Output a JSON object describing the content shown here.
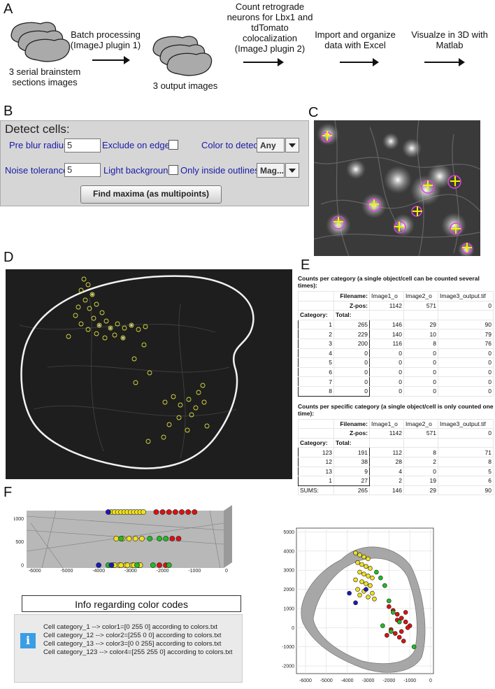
{
  "panel_labels": {
    "a": "A",
    "b": "B",
    "c": "C",
    "d": "D",
    "e": "E",
    "f": "F"
  },
  "flow": {
    "input_caption": "3 serial brainstem sections images",
    "step1": "Batch processing (ImageJ plugin 1)",
    "output_caption": "3 output images",
    "step2": "Count retrograde neurons for Lbx1 and tdTomato colocalization (ImageJ plugin 2)",
    "step3": "Import and organize data with Excel",
    "step4": "Visualze in 3D with Matlab"
  },
  "detect": {
    "title": "Detect cells:",
    "pre_blur_label": "Pre blur radius",
    "pre_blur_value": "5",
    "exclude_label": "Exclude on edges",
    "color_label": "Color to detect",
    "color_value": "Any",
    "noise_label": "Noise tolerance",
    "noise_value": "5",
    "light_label": "Light background",
    "outlines_label": "Only inside outlines",
    "outlines_value": "Mag...",
    "button": "Find maxima (as multipoints)"
  },
  "table": {
    "title1": "Counts per category (a single object/cell can be counted several times):",
    "title2": "Counts per specific category  (a single object/cell is only counted one time):",
    "filename_label": "Filename:",
    "files": [
      "Image1_o",
      "Image2_o",
      "Image3_output.tif"
    ],
    "zpos_label": "Z-pos:",
    "zpos": [
      "1142",
      "571",
      "0"
    ],
    "category_label": "Category:",
    "total_label": "Total:",
    "rows1": [
      [
        "1",
        "265",
        "146",
        "29",
        "90"
      ],
      [
        "2",
        "229",
        "140",
        "10",
        "79"
      ],
      [
        "3",
        "200",
        "116",
        "8",
        "76"
      ],
      [
        "4",
        "0",
        "0",
        "0",
        "0"
      ],
      [
        "5",
        "0",
        "0",
        "0",
        "0"
      ],
      [
        "6",
        "0",
        "0",
        "0",
        "0"
      ],
      [
        "7",
        "0",
        "0",
        "0",
        "0"
      ],
      [
        "8",
        "0",
        "0",
        "0",
        "0"
      ]
    ],
    "rows2": [
      [
        "123",
        "191",
        "112",
        "8",
        "71"
      ],
      [
        "12",
        "38",
        "28",
        "2",
        "8"
      ],
      [
        "13",
        "9",
        "4",
        "0",
        "5"
      ],
      [
        "1",
        "27",
        "2",
        "19",
        "6"
      ]
    ],
    "sums_label": "SUMS:",
    "sums": [
      "265",
      "146",
      "29",
      "90"
    ]
  },
  "info": {
    "title": "Info regarding color codes",
    "icon": "info-icon",
    "lines": [
      "Cell category_1 --> color1=[0 255 0] according to colors.txt",
      "Cell category_12 --> color2=[255 0 0] according to colors.txt",
      "Cell category_13 --> color3=[0 0 255] according to colors.txt",
      "Cell category_123 --> color4=[255 255 0] according to colors.txt"
    ]
  },
  "colors": {
    "green": "#22bb22",
    "red": "#dd1111",
    "blue": "#1a1ab8",
    "yellow": "#f0e020"
  },
  "chart_data": [
    {
      "type": "scatter",
      "x_ticks": [
        "-6000",
        "-5000",
        "-4000",
        "-3000",
        "-2000",
        "-1000",
        "0"
      ],
      "y_ticks": [
        "0",
        "500",
        "1000"
      ],
      "xlim": [
        -6300,
        0
      ],
      "ylim": [
        0,
        1142
      ],
      "series": [
        {
          "color": "yellow",
          "x": [
            -3600,
            -3500,
            -3400,
            -3300,
            -3200,
            -3100,
            -3000,
            -2900,
            -2800,
            -2700,
            -2600,
            -3450,
            -3250,
            -3050,
            -2850,
            -2650,
            -3550,
            -3350,
            -3150,
            -2950,
            -2750,
            -3500,
            -3300,
            -3100,
            -2900,
            -2700
          ],
          "y": [
            1142,
            1142,
            1142,
            1142,
            1142,
            1142,
            1142,
            1142,
            1142,
            1142,
            1142,
            571,
            571,
            571,
            571,
            571,
            0,
            0,
            0,
            0,
            0,
            0,
            0,
            0,
            0,
            0
          ]
        },
        {
          "color": "red",
          "x": [
            -2000,
            -1800,
            -1600,
            -1400,
            -1200,
            -1000,
            -2200,
            -1700,
            -1500,
            -2100,
            -1900
          ],
          "y": [
            1142,
            1142,
            1142,
            1142,
            1142,
            1142,
            1142,
            571,
            571,
            0,
            0
          ]
        },
        {
          "color": "green",
          "x": [
            -3300,
            -2400,
            -2100,
            -1900,
            -2300,
            -1800,
            -3700,
            -2800
          ],
          "y": [
            571,
            571,
            571,
            571,
            0,
            0,
            0,
            0
          ]
        },
        {
          "color": "blue",
          "x": [
            -3700,
            -4000,
            -3600
          ],
          "y": [
            1142,
            0,
            0
          ]
        }
      ]
    },
    {
      "type": "scatter",
      "x_ticks": [
        "-6000",
        "-5000",
        "-4000",
        "-3000",
        "-2000",
        "-1000",
        "0"
      ],
      "y_ticks": [
        "5000",
        "4000",
        "3000",
        "2000",
        "1000",
        "0",
        "-1000",
        "-2000"
      ],
      "xlim": [
        -6300,
        0
      ],
      "ylim": [
        -2400,
        5200
      ],
      "series": [
        {
          "color": "yellow",
          "x": [
            -3600,
            -3400,
            -3200,
            -3000,
            -3500,
            -3300,
            -3100,
            -2900,
            -3400,
            -3200,
            -3000,
            -2800,
            -3600,
            -3300,
            -3100,
            -2900,
            -3500,
            -3200,
            -2800,
            -3400,
            -3000,
            -2700
          ],
          "y": [
            3900,
            3800,
            3700,
            3600,
            3400,
            3300,
            3200,
            3100,
            2900,
            2800,
            2700,
            2600,
            2500,
            2400,
            2300,
            2200,
            2000,
            1900,
            1800,
            1700,
            1600,
            1500
          ]
        },
        {
          "color": "red",
          "x": [
            -2000,
            -1800,
            -1600,
            -1400,
            -1200,
            -1000,
            -1900,
            -1700,
            -1500,
            -1300,
            -1100,
            -1600,
            -1400,
            -1200,
            -2100
          ],
          "y": [
            1100,
            900,
            700,
            500,
            300,
            100,
            -100,
            -300,
            -500,
            -700,
            0,
            400,
            -200,
            800,
            -400
          ]
        },
        {
          "color": "green",
          "x": [
            -2600,
            -2400,
            -2200,
            -2000,
            -1800,
            -1500,
            -2300,
            -1900,
            -800
          ],
          "y": [
            2900,
            2600,
            2200,
            1400,
            800,
            300,
            100,
            -200,
            -1000
          ]
        },
        {
          "color": "blue",
          "x": [
            -3900,
            -3100,
            -3600
          ],
          "y": [
            1800,
            2000,
            1300
          ]
        }
      ]
    }
  ]
}
